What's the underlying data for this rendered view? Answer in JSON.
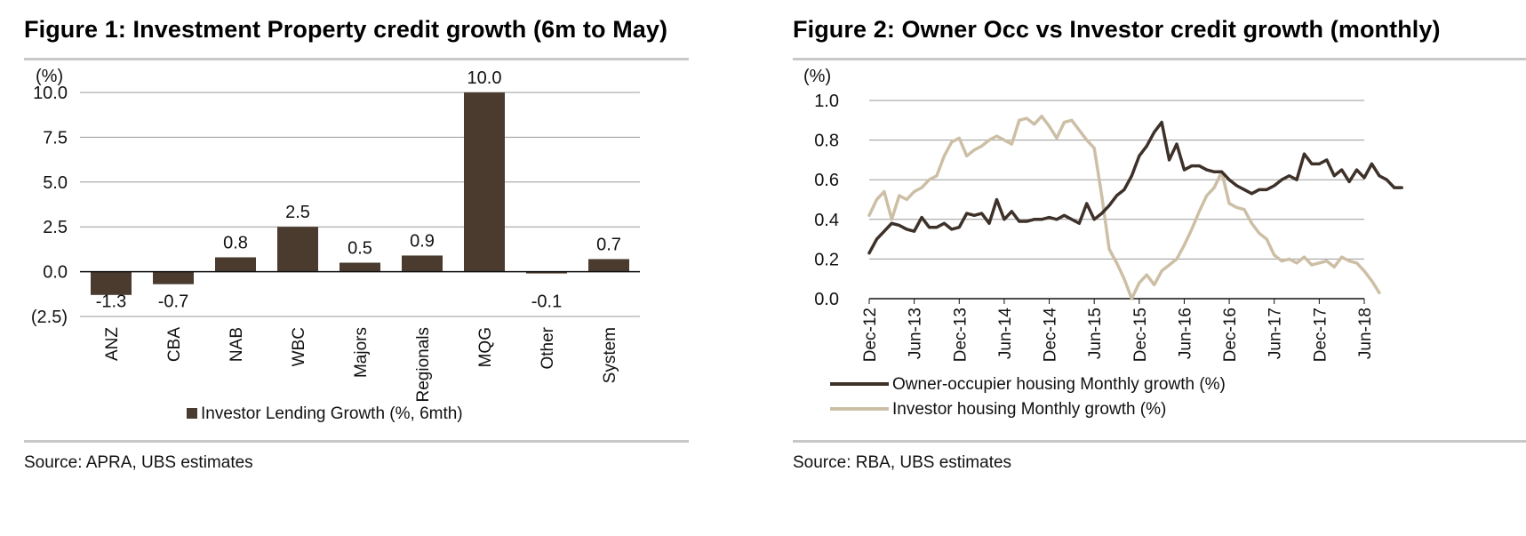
{
  "chart_data": [
    {
      "type": "bar",
      "title": "Figure 1: Investment Property credit growth (6m to May)",
      "ylabel": "(%)",
      "ylim": [
        -2.5,
        10.0
      ],
      "yticks": [
        -2.5,
        0.0,
        2.5,
        5.0,
        7.5,
        10.0
      ],
      "ytick_labels": [
        "(2.5)",
        "0.0",
        "2.5",
        "5.0",
        "7.5",
        "10.0"
      ],
      "grid": true,
      "categories": [
        "ANZ",
        "CBA",
        "NAB",
        "WBC",
        "Majors",
        "Regionals",
        "MQG",
        "Other",
        "System"
      ],
      "series": [
        {
          "name": "Investor Lending Growth (%, 6mth)",
          "color": "#4a3b2e",
          "values": [
            -1.3,
            -0.7,
            0.8,
            2.5,
            0.5,
            0.9,
            10.0,
            -0.1,
            0.7
          ]
        }
      ],
      "data_labels": [
        "-1.3",
        "-0.7",
        "0.8",
        "2.5",
        "0.5",
        "0.9",
        "10.0",
        "-0.1",
        "0.7"
      ],
      "legend": "bottom",
      "source": "Source:   APRA, UBS estimates"
    },
    {
      "type": "line",
      "title": "Figure 2: Owner Occ vs Investor credit growth (monthly)",
      "ylabel": "(%)",
      "ylim": [
        0.0,
        1.0
      ],
      "yticks": [
        0.0,
        0.2,
        0.4,
        0.6,
        0.8,
        1.0
      ],
      "ytick_labels": [
        "0.0",
        "0.2",
        "0.4",
        "0.6",
        "0.8",
        "1.0"
      ],
      "grid": true,
      "x_start": "Dec-12",
      "x_end": "Jun-18",
      "xtick_labels": [
        "Dec-12",
        "Jun-13",
        "Dec-13",
        "Jun-14",
        "Dec-14",
        "Jun-15",
        "Dec-15",
        "Jun-16",
        "Dec-16",
        "Jun-17",
        "Dec-17",
        "Jun-18"
      ],
      "series": [
        {
          "name": "Owner-occupier housing Monthly growth (%)",
          "color": "#3d3129",
          "values": [
            0.23,
            0.3,
            0.34,
            0.38,
            0.37,
            0.35,
            0.34,
            0.41,
            0.36,
            0.36,
            0.38,
            0.35,
            0.36,
            0.43,
            0.42,
            0.43,
            0.38,
            0.5,
            0.4,
            0.44,
            0.39,
            0.39,
            0.4,
            0.4,
            0.41,
            0.4,
            0.42,
            0.4,
            0.38,
            0.48,
            0.4,
            0.43,
            0.47,
            0.52,
            0.55,
            0.62,
            0.72,
            0.77,
            0.84,
            0.89,
            0.7,
            0.78,
            0.65,
            0.67,
            0.67,
            0.65,
            0.64,
            0.64,
            0.6,
            0.57,
            0.55,
            0.53,
            0.55,
            0.55,
            0.57,
            0.6,
            0.62,
            0.6,
            0.73,
            0.68,
            0.68,
            0.7,
            0.62,
            0.65,
            0.59,
            0.65,
            0.61,
            0.68,
            0.62,
            0.6,
            0.56,
            0.56
          ]
        },
        {
          "name": "Investor housing Monthly growth (%)",
          "color": "#cdbfa6",
          "values": [
            0.42,
            0.5,
            0.54,
            0.4,
            0.52,
            0.5,
            0.54,
            0.56,
            0.6,
            0.62,
            0.72,
            0.79,
            0.81,
            0.72,
            0.75,
            0.77,
            0.8,
            0.82,
            0.8,
            0.78,
            0.9,
            0.91,
            0.88,
            0.92,
            0.87,
            0.81,
            0.89,
            0.9,
            0.85,
            0.8,
            0.76,
            0.52,
            0.25,
            0.18,
            0.1,
            0.0,
            0.08,
            0.12,
            0.07,
            0.14,
            0.17,
            0.2,
            0.27,
            0.35,
            0.44,
            0.52,
            0.56,
            0.64,
            0.48,
            0.46,
            0.45,
            0.38,
            0.33,
            0.3,
            0.22,
            0.19,
            0.2,
            0.18,
            0.21,
            0.17,
            0.18,
            0.19,
            0.16,
            0.21,
            0.19,
            0.18,
            0.14,
            0.09,
            0.03
          ]
        }
      ],
      "legend": "bottom",
      "source": "Source:   RBA, UBS estimates"
    }
  ]
}
